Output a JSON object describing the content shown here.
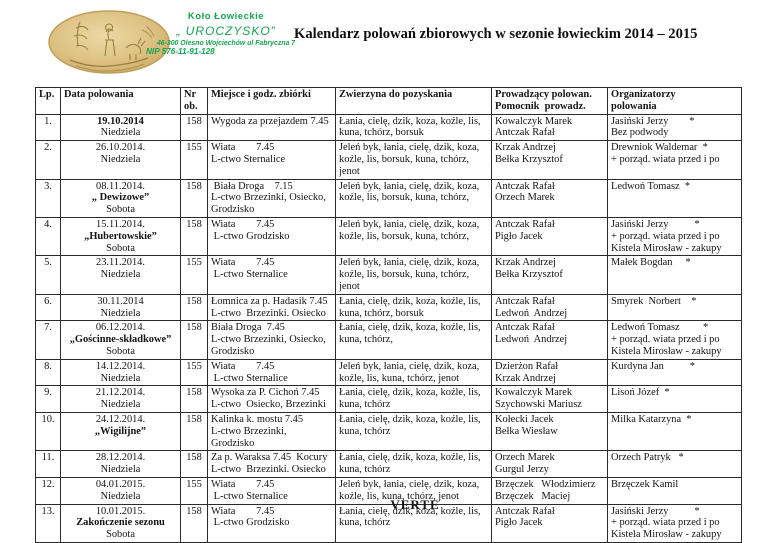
{
  "header": {
    "club_name": "Koło  Łowieckie",
    "club_alias": "„ UROCZYSKO”",
    "address": "46-300 Olesno Wojciechów ul Fabryczna 7",
    "nip": "NIP 576-11-91-128",
    "title": "Kalendarz polowań zbiorowych w sezonie łowieckim 2014 – 2015",
    "green_color": "#17a452",
    "logo_color": "#ddc183"
  },
  "table": {
    "columns": [
      {
        "key": "lp",
        "lines": [
          "Lp."
        ]
      },
      {
        "key": "date",
        "lines": [
          "Data polowania"
        ]
      },
      {
        "key": "nr",
        "lines": [
          "Nr",
          "ob."
        ]
      },
      {
        "key": "place",
        "lines": [
          "Miejsce i godz. zbiórki"
        ]
      },
      {
        "key": "game",
        "lines": [
          "Zwierzyna do pozyskania"
        ]
      },
      {
        "key": "leader",
        "lines": [
          "Prowadzący polowan.",
          "Pomocnik  prowadz."
        ]
      },
      {
        "key": "org",
        "lines": [
          "Organizatorzy",
          "polowania"
        ]
      }
    ],
    "rows": [
      {
        "lp": "1.",
        "date": [
          {
            "t": "19.10.2014",
            "b": true
          },
          {
            "t": "Niedziela",
            "b": false
          }
        ],
        "nr": "158",
        "place": [
          "Wygoda za przejazdem 7.45"
        ],
        "game": [
          "Łania, cielę, dzik, koza, koźle, lis,",
          "kuna, tchórz, borsuk"
        ],
        "leader": [
          "Kowalczyk Marek",
          "Antczak Rafał"
        ],
        "org": [
          "Jasiński Jerzy        *",
          "Bez podwody"
        ]
      },
      {
        "lp": "2.",
        "date": [
          {
            "t": "26.10.2014.",
            "b": false
          },
          {
            "t": "Niedziela",
            "b": false
          }
        ],
        "nr": "155",
        "place": [
          "Wiata        7.45",
          "L-ctwo Sternalice"
        ],
        "game": [
          "Jeleń byk, łania, cielę, dzik, koza,",
          "koźle, lis, borsuk, kuna, tchórz, jenot"
        ],
        "leader": [
          "Krzak Andrzej",
          "Bełka Krzysztof"
        ],
        "org": [
          "Drewniok Waldemar  *",
          "+ porząd. wiata przed i po"
        ]
      },
      {
        "lp": "3.",
        "date": [
          {
            "t": "08.11.2014.",
            "b": false
          },
          {
            "t": "„ Dewizowe”",
            "b": true
          },
          {
            "t": "Sobota",
            "b": false
          }
        ],
        "nr": "158",
        "place": [
          " Biała Droga    7.15",
          "L-ctwo Brzezinki, Osiecko,",
          "Grodzisko"
        ],
        "game": [
          "Jeleń byk, łania, cielę, dzik, koza,",
          "koźle, lis, borsuk, kuna, tchórz,"
        ],
        "leader": [
          "Antczak Rafał",
          "Orzech Marek"
        ],
        "org": [
          "Ledwoń Tomasz  *"
        ]
      },
      {
        "lp": "4.",
        "date": [
          {
            "t": "15.11.2014.",
            "b": false
          },
          {
            "t": "„Hubertowskie”",
            "b": true
          },
          {
            "t": "Sobota",
            "b": false
          }
        ],
        "nr": "158",
        "place": [
          "Wiata        7.45",
          " L-ctwo Grodzisko"
        ],
        "game": [
          "Jeleń byk, łania, cielę, dzik, koza,",
          "koźle, lis, borsuk, kuna, tchórz,"
        ],
        "leader": [
          "Antczak Rafał",
          "Pigło Jacek"
        ],
        "org": [
          "Jasiński Jerzy          *",
          "+ porząd. wiata przed i po",
          "Kistela Mirosław - zakupy"
        ]
      },
      {
        "lp": "5.",
        "date": [
          {
            "t": "23.11.2014.",
            "b": false
          },
          {
            "t": "Niedziela",
            "b": false
          }
        ],
        "nr": "155",
        "place": [
          "Wiata        7.45",
          " L-ctwo Sternalice"
        ],
        "game": [
          "Jeleń byk, łania, cielę, dzik, koza,",
          "koźle, lis, borsuk, kuna, tchórz, jenot"
        ],
        "leader": [
          "Krzak Andrzej",
          "Bełka Krzysztof"
        ],
        "org": [
          "Małek Bogdan     *"
        ]
      },
      {
        "lp": "6.",
        "date": [
          {
            "t": "30.11.2014",
            "b": false
          },
          {
            "t": "Niedziela",
            "b": false
          }
        ],
        "nr": "158",
        "place": [
          "Łomnica za p. Hadasik 7.45",
          "L-ctwo  Brzezinki. Osiecko"
        ],
        "game": [
          "Łania, cielę, dzik, koza, koźle, lis,",
          "kuna, tchórz, borsuk"
        ],
        "leader": [
          "Antczak Rafał",
          "Ledwoń  Andrzej"
        ],
        "org": [
          "Smyrek  Norbert    *"
        ]
      },
      {
        "lp": "7.",
        "date": [
          {
            "t": "06.12.2014.",
            "b": false
          },
          {
            "t": "„Gościnne-składkowe”",
            "b": true
          },
          {
            "t": "Sobota",
            "b": false
          }
        ],
        "nr": "158",
        "place": [
          "Biała Droga  7.45",
          "L-ctwo Brzezinki, Osiecko,",
          "Grodzisko"
        ],
        "game": [
          "Łania, cielę, dzik, koza, koźle, lis,",
          "kuna, tchórz,"
        ],
        "leader": [
          "Antczak Rafał",
          "Ledwoń  Andrzej"
        ],
        "org": [
          "Ledwoń Tomasz         *",
          "+ porząd. wiata przed i po",
          "Kistela Mirosław - zakupy"
        ]
      },
      {
        "lp": "8.",
        "date": [
          {
            "t": "14.12.2014.",
            "b": false
          },
          {
            "t": "Niedziela",
            "b": false
          }
        ],
        "nr": "155",
        "place": [
          "Wiata        7.45",
          " L-ctwo Sternalice"
        ],
        "game": [
          "Jeleń byk, łania, cielę, dzik, koza,",
          "koźle, lis, kuna, tchórz, jenot"
        ],
        "leader": [
          "Dzierżon Rafał",
          "Krzak Andrzej"
        ],
        "org": [
          "Kurdyna Jan          *"
        ]
      },
      {
        "lp": "9.",
        "date": [
          {
            "t": "21.12.2014.",
            "b": false
          },
          {
            "t": "Niedziela",
            "b": false
          }
        ],
        "nr": "158",
        "place": [
          "Wysoka za P. Cichoń 7.45",
          "L-ctwo  Osiecko, Brzezinki"
        ],
        "game": [
          "Łania, cielę, dzik, koza, koźle, lis,",
          "kuna, tchórz"
        ],
        "leader": [
          "Kowalczyk Marek",
          "Szychowski Mariusz"
        ],
        "org": [
          "Lisoń Józef  *"
        ]
      },
      {
        "lp": "10.",
        "date": [
          {
            "t": "24.12.2014.",
            "b": false
          },
          {
            "t": "„Wigilijne”",
            "b": true
          }
        ],
        "nr": "158",
        "place": [
          "Kalinka k. mostu 7.45",
          "L-ctwo Brzezinki, Grodzisko"
        ],
        "game": [
          "Łania, cielę, dzik, koza, koźle, lis,",
          "kuna, tchórz"
        ],
        "leader": [
          "Kołecki Jacek",
          "Bełka Wiesław"
        ],
        "org": [
          "Milka Katarzyna  *"
        ]
      },
      {
        "lp": "11.",
        "date": [
          {
            "t": "28.12.2014.",
            "b": false
          },
          {
            "t": "Niedziela",
            "b": false
          }
        ],
        "nr": "158",
        "place": [
          "Za p. Waraksa 7.45  Kocury",
          "L-ctwo  Brzezinki. Osiecko"
        ],
        "game": [
          "Łania, cielę, dzik, koza, koźle, lis,",
          "kuna, tchórz"
        ],
        "leader": [
          "Orzech Marek",
          "Gurgul Jerzy"
        ],
        "org": [
          "Orzech Patryk   *"
        ]
      },
      {
        "lp": "12.",
        "date": [
          {
            "t": "04.01.2015.",
            "b": false
          },
          {
            "t": "Niedziela",
            "b": false
          }
        ],
        "nr": "155",
        "place": [
          "Wiata        7.45",
          " L-ctwo Sternalice"
        ],
        "game": [
          "Jeleń byk, łania, cielę, dzik, koza,",
          "koźle, lis, kuna, tchórz, jenot"
        ],
        "leader": [
          "Brzęczek   Włodzimierz",
          "Brzęczek   Maciej"
        ],
        "org": [
          "Brzęczek Kamil"
        ]
      },
      {
        "lp": "13.",
        "date": [
          {
            "t": "10.01.2015.",
            "b": false
          },
          {
            "t": "Zakończenie sezonu",
            "b": true
          },
          {
            "t": "Sobota",
            "b": false
          }
        ],
        "nr": "158",
        "place": [
          "Wiata        7.45",
          " L-ctwo Grodzisko"
        ],
        "game": [
          "Łania, cielę, dzik, koza, koźle, lis,",
          "kuna, tchórz"
        ],
        "leader": [
          "Antczak Rafał",
          "Pigło Jacek"
        ],
        "org": [
          "Jasiński Jerzy          *",
          "+ porząd. wiata przed i po",
          "Kistela Mirosław - zakupy"
        ]
      }
    ]
  },
  "footer": {
    "verte": "VERTE"
  }
}
